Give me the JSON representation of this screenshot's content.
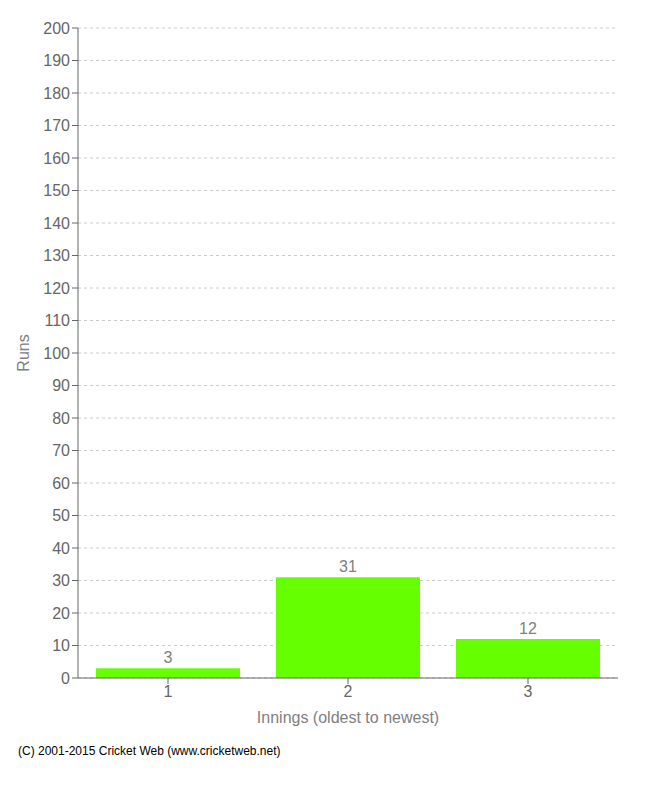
{
  "chart_data": {
    "type": "bar",
    "categories": [
      1,
      2,
      3
    ],
    "values": [
      3,
      31,
      12
    ],
    "color": "#66ff00",
    "xlabel": "Innings (oldest to newest)",
    "ylabel": "Runs",
    "ylim": [
      0,
      200
    ],
    "yticks": [
      0,
      10,
      20,
      30,
      40,
      50,
      60,
      70,
      80,
      90,
      100,
      110,
      120,
      130,
      140,
      150,
      160,
      170,
      180,
      190,
      200
    ],
    "grid": true,
    "data_labels": true,
    "annotations": [
      "(C) 2001-2015 Cricket Web (www.cricketweb.net)"
    ]
  }
}
